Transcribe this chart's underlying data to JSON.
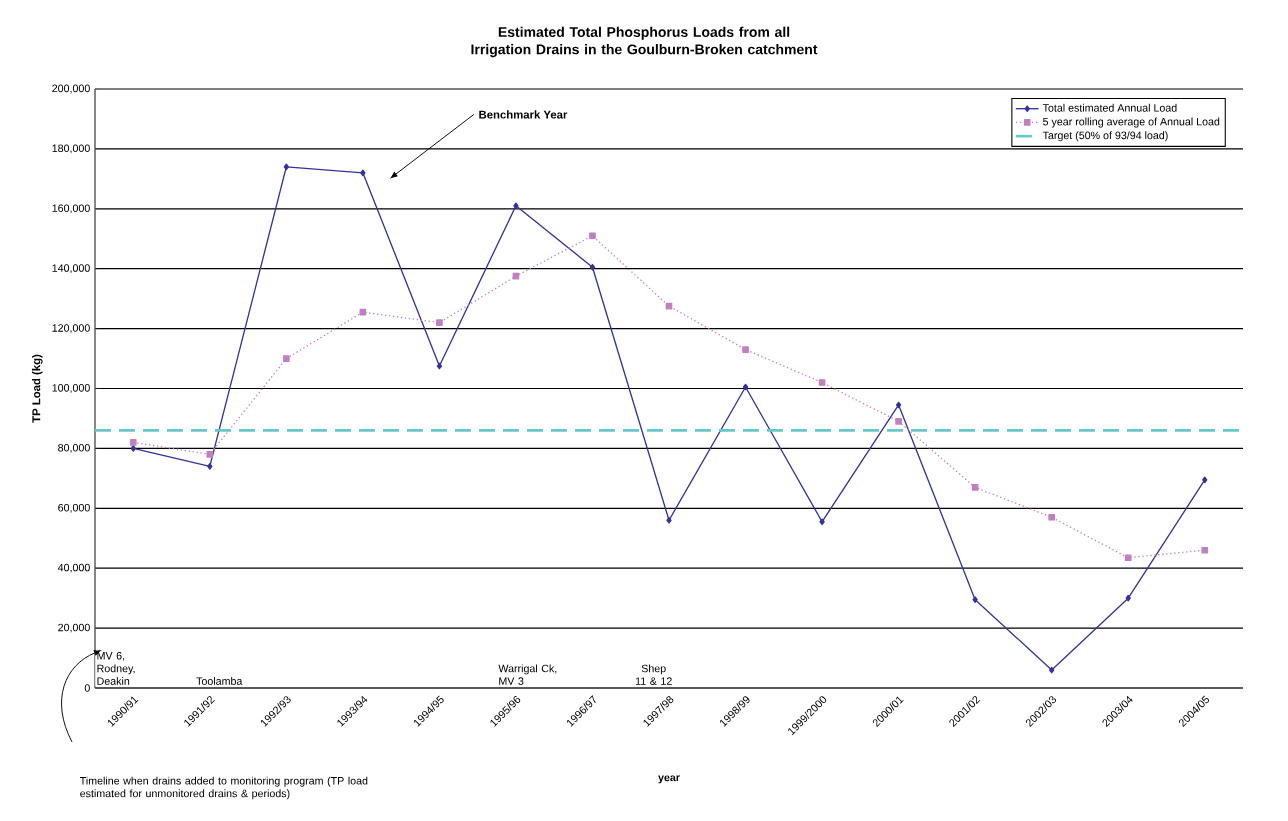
{
  "chart_data": {
    "type": "line",
    "title": "Estimated Total Phosphorus Loads from all Irrigation Drains in the Goulburn-Broken catchment",
    "xlabel": "year",
    "ylabel": "TP Load (kg)",
    "categories": [
      "1990/91",
      "1991/92",
      "1992/93",
      "1993/94",
      "1994/95",
      "1995/96",
      "1996/97",
      "1997/98",
      "1998/99",
      "1999/2000",
      "2000/01",
      "2001/02",
      "2002/03",
      "2003/04",
      "2004/05"
    ],
    "series": [
      {
        "name": "Total estimated Annual Load",
        "color": "#33339a",
        "marker": "diamond",
        "line_style": "solid",
        "values": [
          80000,
          74000,
          174000,
          172000,
          107500,
          161000,
          140500,
          56000,
          100500,
          55500,
          94500,
          29500,
          6000,
          30000,
          69500
        ]
      },
      {
        "name": "5 year rolling average of Annual Load",
        "color": "#c080c0",
        "marker": "square",
        "line_style": "dotted",
        "values": [
          82000,
          78000,
          110000,
          125500,
          122000,
          137500,
          151000,
          127500,
          113000,
          102000,
          89000,
          67000,
          57000,
          43500,
          46000
        ]
      }
    ],
    "ref_lines": [
      {
        "axis": "y",
        "value": 86000,
        "label": "Target (50% of 93/94 load)",
        "color": "#66c8c8",
        "line_style": "dashed"
      }
    ],
    "ylim": [
      0,
      200000
    ],
    "yticks": [
      {
        "value": 0,
        "label": "0"
      },
      {
        "value": 20000,
        "label": "20,000"
      },
      {
        "value": 40000,
        "label": "40,000"
      },
      {
        "value": 60000,
        "label": "60,000"
      },
      {
        "value": 80000,
        "label": "80,000"
      },
      {
        "value": 100000,
        "label": "100,000"
      },
      {
        "value": 120000,
        "label": "120,000"
      },
      {
        "value": 140000,
        "label": "140,000"
      },
      {
        "value": 160000,
        "label": "160,000"
      },
      {
        "value": 180000,
        "label": "180,000"
      },
      {
        "value": 200000,
        "label": "200,000"
      }
    ],
    "grid": "y",
    "legend": "top right",
    "annotations": [
      "Benchmark Year",
      "MV 6, Rodney, Deakin",
      "Toolamba",
      "Warrigal Ck, MV 3",
      "Shep 11 & 12",
      "Timeline when drains added to monitoring program (TP load estimated for unmonitored drains & periods)"
    ]
  }
}
